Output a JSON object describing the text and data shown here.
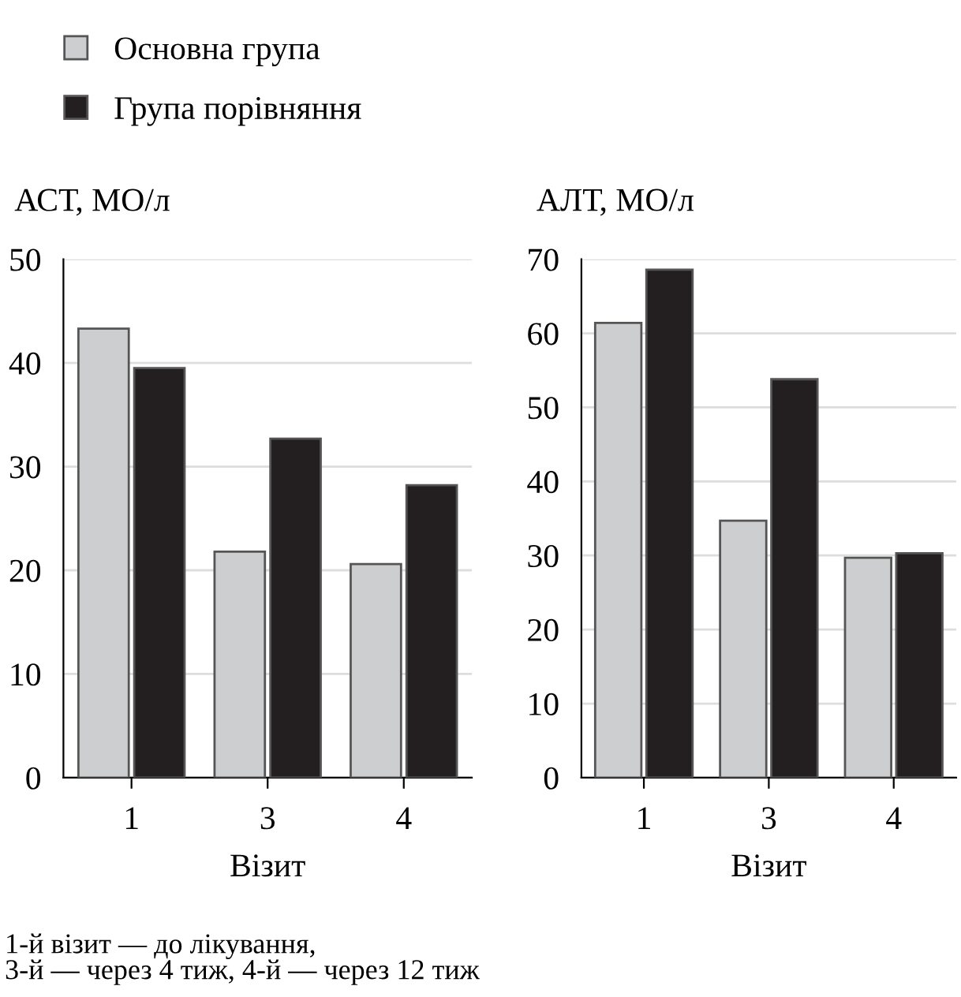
{
  "chart_data": [
    {
      "type": "bar",
      "ylabel": "АСТ, МО/л",
      "xlabel": "Візит",
      "categories": [
        "1",
        "3",
        "4"
      ],
      "series": [
        {
          "name": "Основна група",
          "color": "#cdcecf",
          "values": [
            43.3,
            21.8,
            20.6
          ]
        },
        {
          "name": "Група порівняння",
          "color": "#231f20",
          "values": [
            39.5,
            32.7,
            28.2
          ]
        }
      ],
      "ylim": [
        0,
        50
      ],
      "yticks": [
        0,
        10,
        20,
        30,
        40,
        50
      ],
      "grid": "y",
      "legend": "top left",
      "annotations": [
        "1-й візит — до лікування,\n3-й — через 4 тиж, 4-й — через 12 тиж"
      ]
    },
    {
      "type": "bar",
      "ylabel": "АЛТ, МО/л",
      "xlabel": "Візит",
      "categories": [
        "1",
        "3",
        "4"
      ],
      "series": [
        {
          "color": "#cdcecf",
          "values": [
            61.4,
            34.7,
            29.7
          ]
        },
        {
          "color": "#231f20",
          "values": [
            68.6,
            53.8,
            30.3
          ]
        }
      ],
      "ylim": [
        0,
        70
      ],
      "yticks": [
        0,
        10,
        20,
        30,
        40,
        50,
        60,
        70
      ],
      "grid": "y"
    }
  ]
}
